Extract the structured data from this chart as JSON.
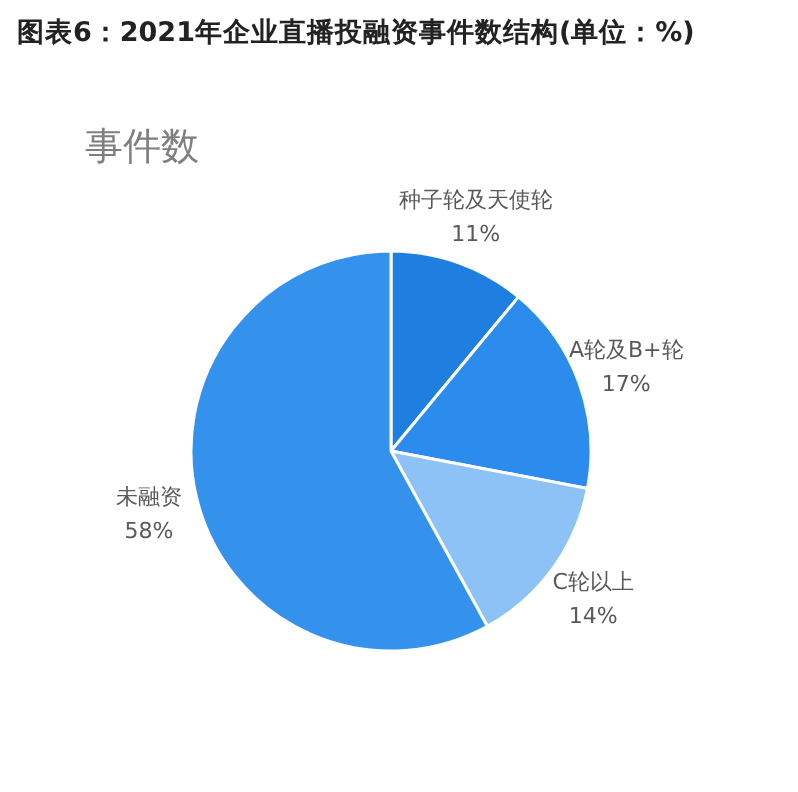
{
  "chart_data": {
    "type": "pie",
    "title": "图表6：2021年企业直播投融资事件数结构(单位：%)",
    "subtitle": "事件数",
    "categories": [
      "种子轮及天使轮",
      "A轮及B+轮",
      "C轮以上",
      "未融资"
    ],
    "values": [
      11,
      17,
      14,
      58
    ],
    "colors": [
      "#1e7fe0",
      "#2b8ced",
      "#8cc2f5",
      "#3592ec"
    ],
    "value_labels": [
      "11%",
      "17%",
      "14%",
      "58%"
    ]
  }
}
